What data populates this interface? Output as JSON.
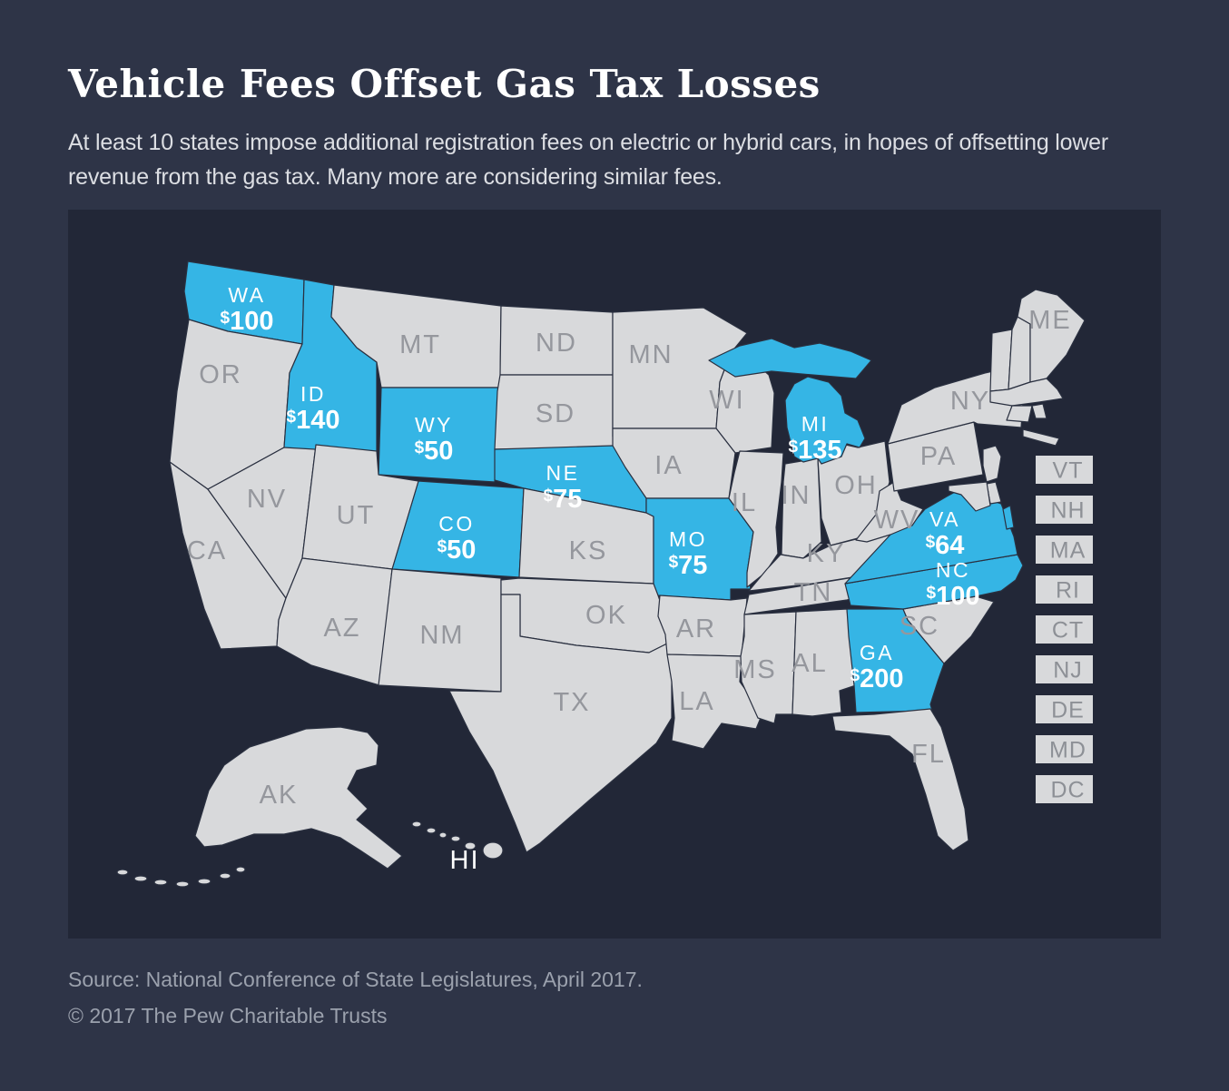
{
  "header": {
    "title": "Vehicle Fees Offset Gas Tax Losses",
    "subtitle": "At least 10 states impose additional registration fees on electric or hybrid cars, in hopes of offsetting lower revenue from the gas tax. Many more are considering similar fees."
  },
  "footer": {
    "source": "Source: National Conference of State Legislatures, April 2017.",
    "copyright": "© 2017 The Pew Charitable Trusts"
  },
  "colors": {
    "page_background": "#2e3447",
    "map_background": "#222737",
    "state_fill": "#d8d9db",
    "highlight_blue": "#35b5e5",
    "state_label_gray": "#95979d",
    "side_box_text": "#8d9096",
    "subtitle_text": "#dcdee3",
    "footer_text": "#9ba1ad",
    "white": "#ffffff"
  },
  "map": {
    "fee_states": [
      {
        "abbr": "WA",
        "fee": "$100"
      },
      {
        "abbr": "ID",
        "fee": "$140"
      },
      {
        "abbr": "WY",
        "fee": "$50"
      },
      {
        "abbr": "CO",
        "fee": "$50"
      },
      {
        "abbr": "NE",
        "fee": "$75"
      },
      {
        "abbr": "MO",
        "fee": "$75"
      },
      {
        "abbr": "MI",
        "fee": "$135"
      },
      {
        "abbr": "VA",
        "fee": "$64"
      },
      {
        "abbr": "NC",
        "fee": "$100"
      },
      {
        "abbr": "GA",
        "fee": "$200"
      }
    ],
    "plain_labels": [
      {
        "abbr": "OR"
      },
      {
        "abbr": "CA"
      },
      {
        "abbr": "NV"
      },
      {
        "abbr": "UT"
      },
      {
        "abbr": "AZ"
      },
      {
        "abbr": "MT"
      },
      {
        "abbr": "ND"
      },
      {
        "abbr": "SD"
      },
      {
        "abbr": "KS"
      },
      {
        "abbr": "NM"
      },
      {
        "abbr": "OK"
      },
      {
        "abbr": "TX"
      },
      {
        "abbr": "MN"
      },
      {
        "abbr": "IA"
      },
      {
        "abbr": "AR"
      },
      {
        "abbr": "LA"
      },
      {
        "abbr": "WI"
      },
      {
        "abbr": "IL"
      },
      {
        "abbr": "IN"
      },
      {
        "abbr": "OH"
      },
      {
        "abbr": "KY"
      },
      {
        "abbr": "TN"
      },
      {
        "abbr": "MS"
      },
      {
        "abbr": "AL"
      },
      {
        "abbr": "FL"
      },
      {
        "abbr": "SC"
      },
      {
        "abbr": "WV"
      },
      {
        "abbr": "PA"
      },
      {
        "abbr": "NY"
      },
      {
        "abbr": "ME"
      },
      {
        "abbr": "AK"
      }
    ],
    "offshore_label": "HI",
    "side_states": [
      {
        "abbr": "VT"
      },
      {
        "abbr": "NH"
      },
      {
        "abbr": "MA"
      },
      {
        "abbr": "RI"
      },
      {
        "abbr": "CT"
      },
      {
        "abbr": "NJ"
      },
      {
        "abbr": "DE"
      },
      {
        "abbr": "MD"
      },
      {
        "abbr": "DC"
      }
    ]
  },
  "chart_data": {
    "type": "heatmap",
    "subtype": "us-choropleth",
    "title": "Vehicle Fees Offset Gas Tax Losses",
    "value_unit": "USD additional annual registration fee",
    "legend_position": "none",
    "states": [
      {
        "state": "WA",
        "fee": 100
      },
      {
        "state": "ID",
        "fee": 140
      },
      {
        "state": "WY",
        "fee": 50
      },
      {
        "state": "CO",
        "fee": 50
      },
      {
        "state": "NE",
        "fee": 75
      },
      {
        "state": "MO",
        "fee": 75
      },
      {
        "state": "MI",
        "fee": 135
      },
      {
        "state": "VA",
        "fee": 64
      },
      {
        "state": "NC",
        "fee": 100
      },
      {
        "state": "GA",
        "fee": 200
      }
    ]
  }
}
